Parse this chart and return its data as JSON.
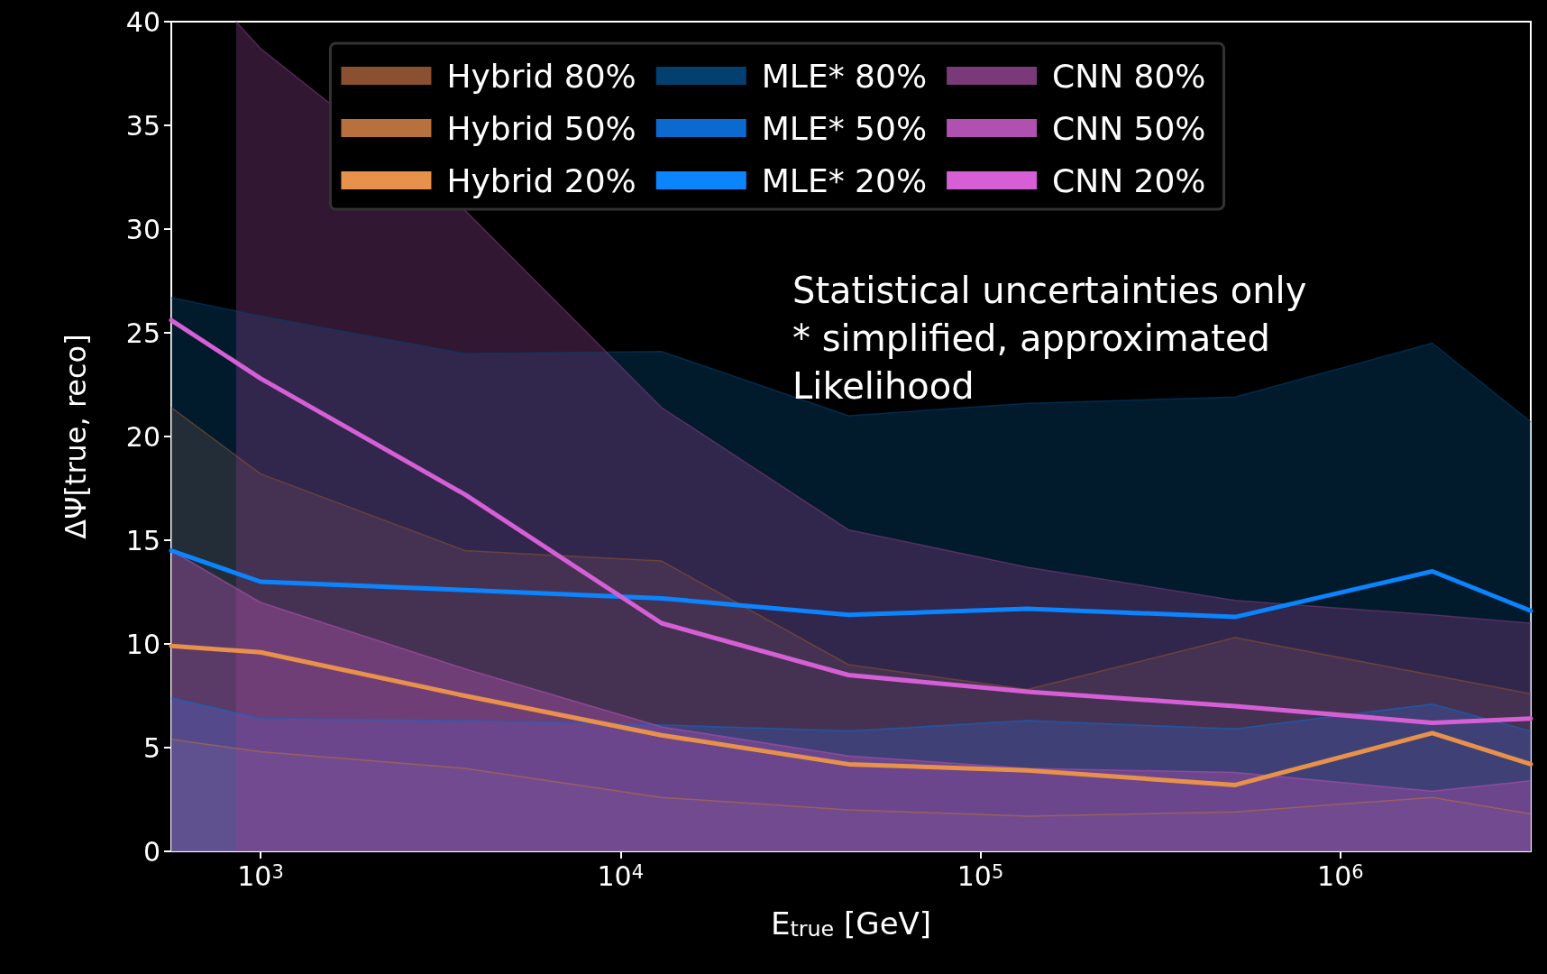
{
  "chart_data": {
    "type": "area",
    "xlabel": "E$_{true}$ [GeV]",
    "ylabel": "ΔΨ[true, reco]",
    "log": "x",
    "x": [
      565,
      1000,
      3700,
      13000,
      43000,
      135000,
      510000,
      1800000,
      3380000
    ],
    "xlim": [
      565,
      3380000
    ],
    "xticks": [
      {
        "value": 1000,
        "label": "10$^{3}$"
      },
      {
        "value": 10000,
        "label": "10$^{4}$"
      },
      {
        "value": 100000,
        "label": "10$^{5}$"
      },
      {
        "value": 1000000,
        "label": "10$^{6}$"
      }
    ],
    "ylim": [
      0,
      40
    ],
    "yticks": [
      0,
      5,
      10,
      15,
      20,
      25,
      30,
      35,
      40
    ],
    "grid": false,
    "legend": "top",
    "annotations": [
      "Statistical uncertainties only\n* simplified, approximated\nLikelihood"
    ],
    "series": [
      {
        "name": "Hybrid 80%",
        "color": "#8a5030",
        "values": [
          21.4,
          18.2,
          14.5,
          14.0,
          9.0,
          7.8,
          10.3,
          8.5,
          7.6
        ]
      },
      {
        "name": "Hybrid 50%",
        "color": "#b8703e",
        "values": [
          5.4,
          4.8,
          4.0,
          2.6,
          2.0,
          1.7,
          1.9,
          2.6,
          1.8
        ]
      },
      {
        "name": "Hybrid 20%",
        "type": "line",
        "color": "#e8914a",
        "values": [
          9.9,
          9.6,
          7.5,
          5.6,
          4.2,
          3.9,
          3.2,
          5.7,
          4.2
        ]
      },
      {
        "name": "MLE* 80%",
        "color": "#03406f",
        "values": [
          26.7,
          25.8,
          24.0,
          24.1,
          21.0,
          21.6,
          21.9,
          24.5,
          20.7
        ]
      },
      {
        "name": "MLE* 50%",
        "color": "#0a6ad0",
        "values": [
          7.4,
          6.4,
          6.3,
          6.1,
          5.8,
          6.3,
          5.9,
          7.1,
          5.8
        ]
      },
      {
        "name": "MLE* 20%",
        "type": "line",
        "color": "#0a84ff",
        "values": [
          14.5,
          13.0,
          12.6,
          12.2,
          11.4,
          11.7,
          11.3,
          13.5,
          11.6
        ]
      },
      {
        "name": "CNN 80%",
        "color": "#7a3a7a",
        "x": [
          855,
          1000,
          3700,
          13000,
          43000,
          135000,
          510000,
          1800000,
          3380000
        ],
        "values": [
          40,
          38.7,
          30.9,
          21.4,
          15.5,
          13.7,
          12.1,
          11.4,
          11.0
        ]
      },
      {
        "name": "CNN 50%",
        "color": "#b050b0",
        "values": [
          14.5,
          12.0,
          8.8,
          6.0,
          4.6,
          4.0,
          3.8,
          2.9,
          3.4
        ]
      },
      {
        "name": "CNN 20%",
        "type": "line",
        "color": "#d65fd6",
        "values": [
          25.6,
          22.8,
          17.2,
          11.0,
          8.5,
          7.7,
          7.0,
          6.2,
          6.4
        ]
      }
    ]
  }
}
